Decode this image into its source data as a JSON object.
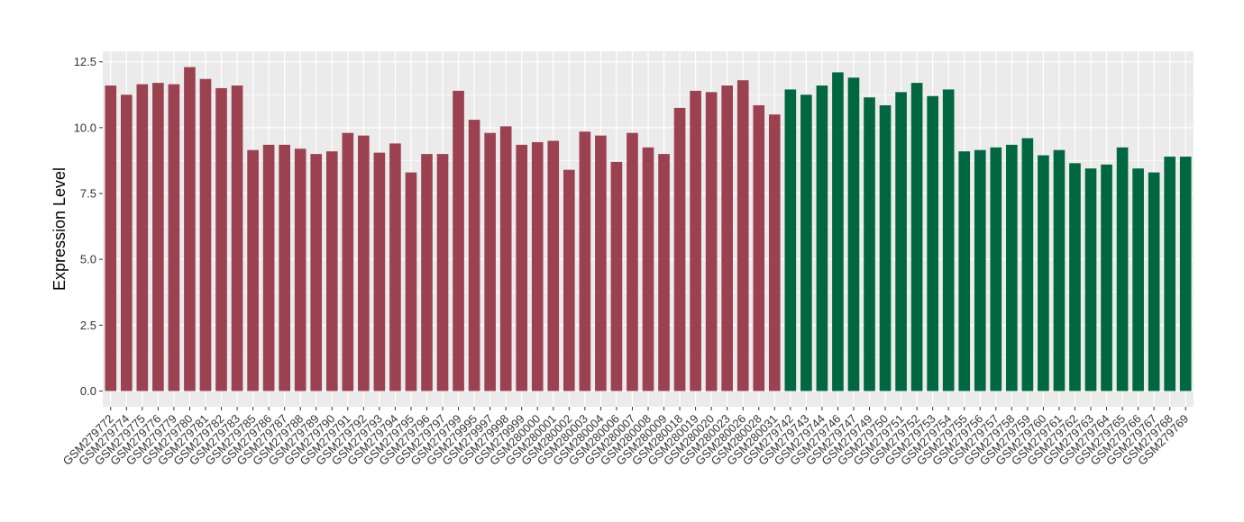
{
  "chart_data": {
    "type": "bar",
    "title": "",
    "xlabel": "",
    "ylabel": "Expression Level",
    "ylim": [
      -0.6,
      12.9
    ],
    "yticks": [
      0.0,
      2.5,
      5.0,
      7.5,
      10.0,
      12.5
    ],
    "ytick_labels": [
      "0.0",
      "2.5",
      "5.0",
      "7.5",
      "10.0",
      "12.5"
    ],
    "grid": true,
    "legend": "none",
    "colors": {
      "group1": "#9b4150",
      "group2": "#006740",
      "panel": "#ebebeb",
      "grid": "#ffffff"
    },
    "categories": [
      "GSM279772",
      "GSM279774",
      "GSM279775",
      "GSM279776",
      "GSM279779",
      "GSM279780",
      "GSM279781",
      "GSM279782",
      "GSM279783",
      "GSM279785",
      "GSM279786",
      "GSM279787",
      "GSM279788",
      "GSM279789",
      "GSM279790",
      "GSM279791",
      "GSM279792",
      "GSM279793",
      "GSM279794",
      "GSM279795",
      "GSM279796",
      "GSM279797",
      "GSM279799",
      "GSM279995",
      "GSM279997",
      "GSM279998",
      "GSM279999",
      "GSM280000",
      "GSM280001",
      "GSM280002",
      "GSM280003",
      "GSM280004",
      "GSM280006",
      "GSM280007",
      "GSM280008",
      "GSM280009",
      "GSM280018",
      "GSM280019",
      "GSM280020",
      "GSM280023",
      "GSM280026",
      "GSM280028",
      "GSM280031",
      "GSM279742",
      "GSM279743",
      "GSM279744",
      "GSM279746",
      "GSM279747",
      "GSM279749",
      "GSM279750",
      "GSM279751",
      "GSM279752",
      "GSM279753",
      "GSM279754",
      "GSM279755",
      "GSM279756",
      "GSM279757",
      "GSM279758",
      "GSM279759",
      "GSM279760",
      "GSM279761",
      "GSM279762",
      "GSM279763",
      "GSM279764",
      "GSM279765",
      "GSM279766",
      "GSM279767",
      "GSM279768",
      "GSM279769"
    ],
    "values": [
      11.6,
      11.25,
      11.65,
      11.7,
      11.65,
      12.3,
      11.85,
      11.5,
      11.6,
      9.15,
      9.35,
      9.35,
      9.2,
      9.0,
      9.1,
      9.8,
      9.7,
      9.05,
      9.4,
      8.3,
      9.0,
      9.0,
      11.4,
      10.3,
      9.8,
      10.05,
      9.35,
      9.45,
      9.5,
      8.4,
      9.85,
      9.7,
      8.7,
      9.8,
      9.25,
      9.0,
      10.75,
      11.4,
      11.35,
      11.6,
      11.8,
      10.85,
      10.5,
      11.45,
      11.25,
      11.6,
      12.1,
      11.9,
      11.15,
      10.85,
      11.35,
      11.7,
      11.2,
      11.45,
      9.1,
      9.15,
      9.25,
      9.35,
      9.6,
      8.95,
      9.15,
      8.65,
      8.45,
      8.6,
      9.25,
      8.45,
      8.3,
      8.9,
      8.9
    ],
    "groups": [
      1,
      1,
      1,
      1,
      1,
      1,
      1,
      1,
      1,
      1,
      1,
      1,
      1,
      1,
      1,
      1,
      1,
      1,
      1,
      1,
      1,
      1,
      1,
      1,
      1,
      1,
      1,
      1,
      1,
      1,
      1,
      1,
      1,
      1,
      1,
      1,
      1,
      1,
      1,
      1,
      1,
      1,
      1,
      2,
      2,
      2,
      2,
      2,
      2,
      2,
      2,
      2,
      2,
      2,
      2,
      2,
      2,
      2,
      2,
      2,
      2,
      2,
      2,
      2,
      2,
      2,
      2,
      2,
      2
    ]
  }
}
